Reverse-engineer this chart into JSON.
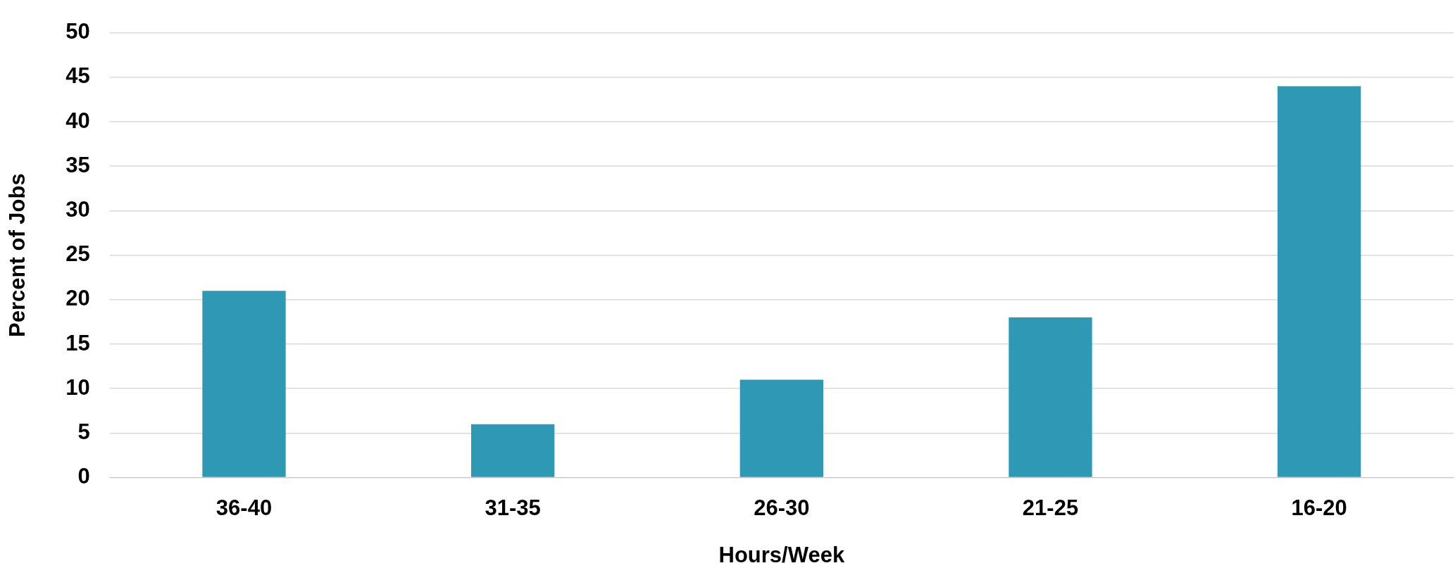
{
  "chart_data": {
    "type": "bar",
    "xlabel": "Hours/Week",
    "ylabel": "Percent of Jobs",
    "categories": [
      "36-40",
      "31-35",
      "26-30",
      "21-25",
      "16-20"
    ],
    "values": [
      21,
      6,
      11,
      18,
      44
    ],
    "color": "#2e98b5",
    "ylim": [
      0,
      50
    ],
    "yticks": [
      0,
      5,
      10,
      15,
      20,
      25,
      30,
      35,
      40,
      45,
      50
    ],
    "grid": "y",
    "legend": false
  }
}
